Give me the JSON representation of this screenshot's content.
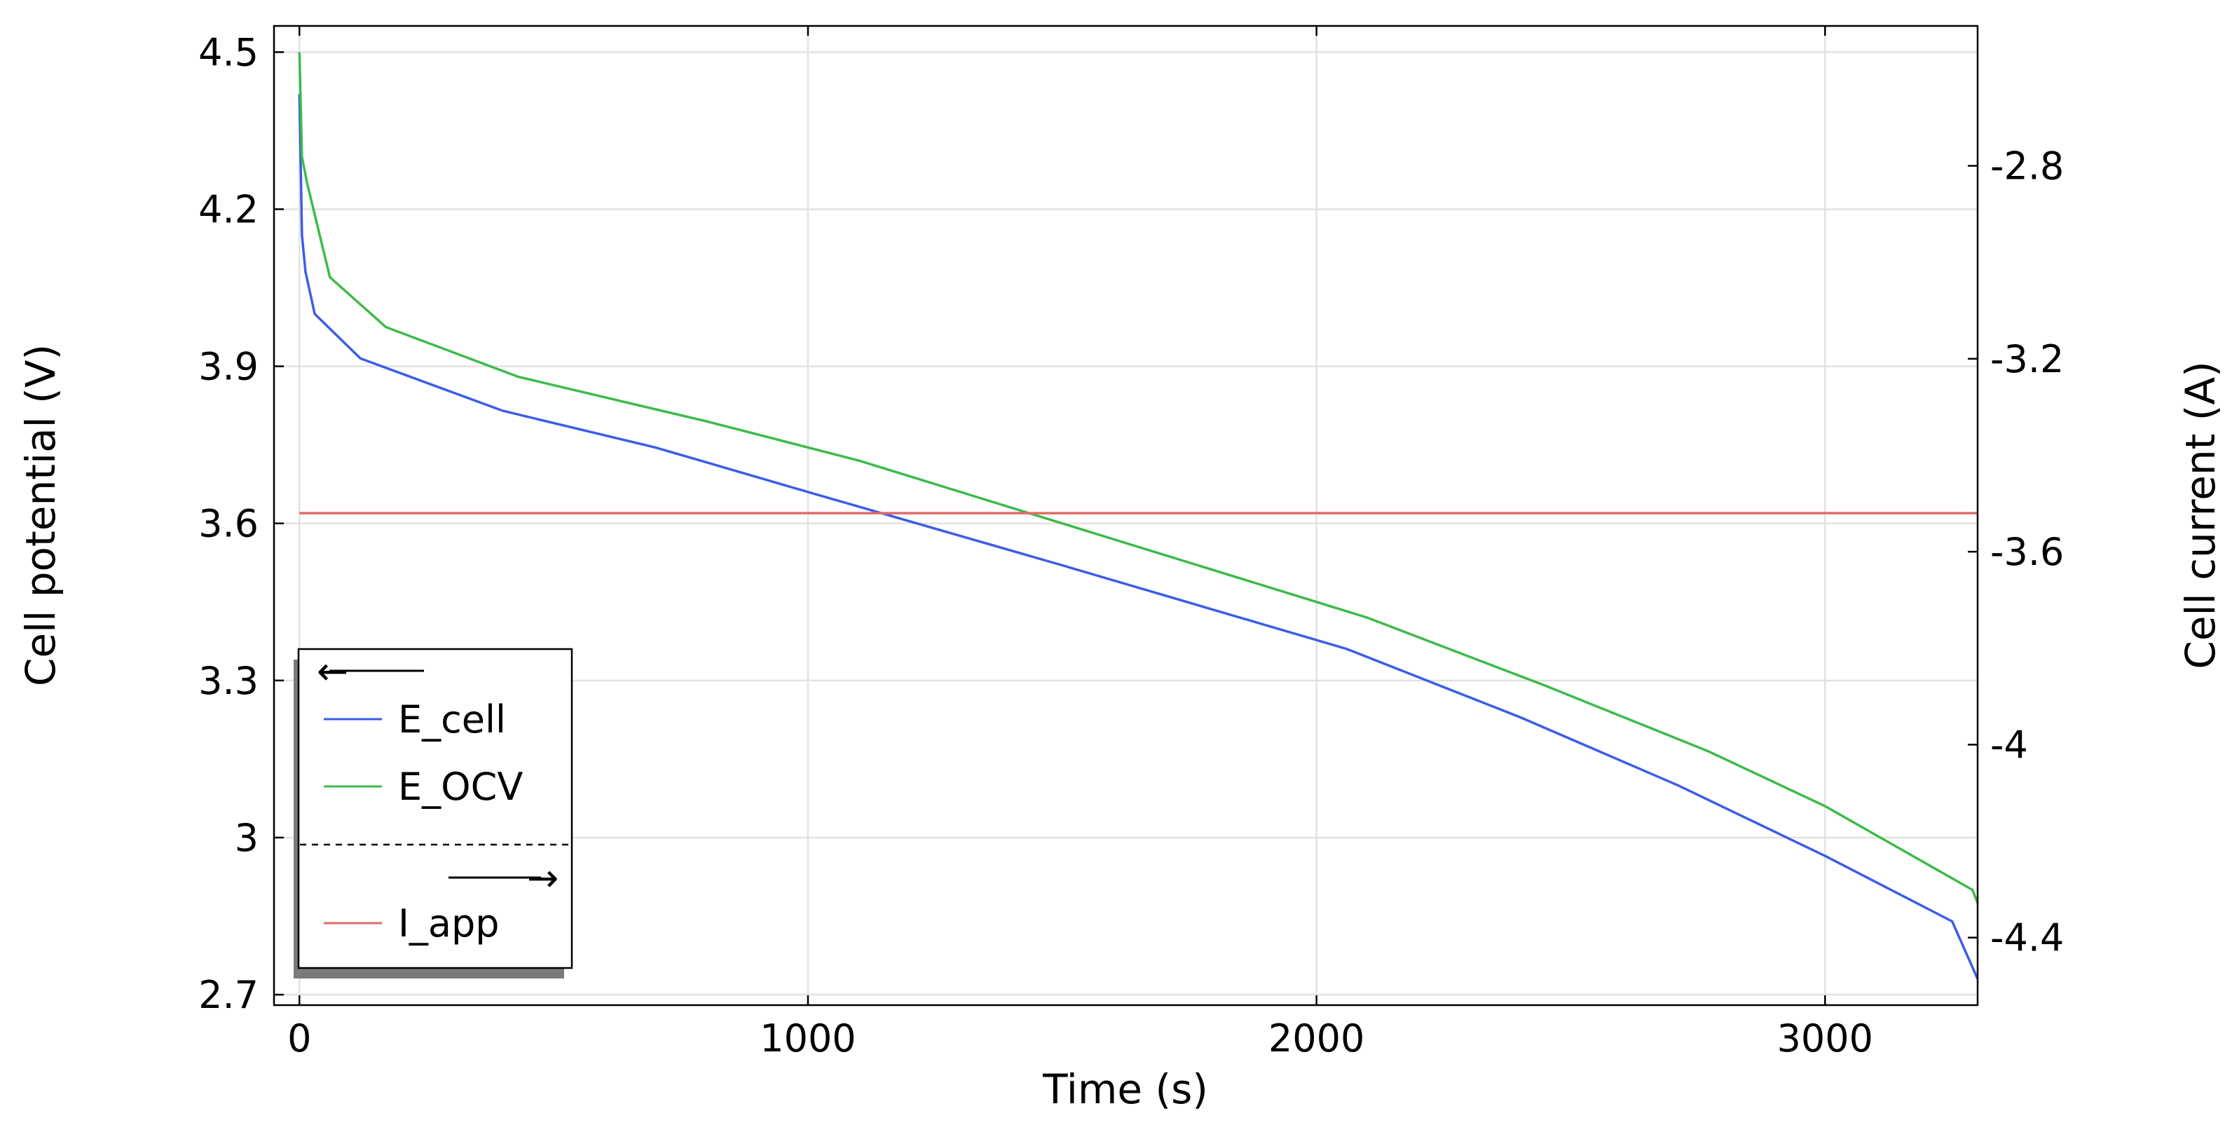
{
  "chart_data": {
    "type": "line",
    "xlabel": "Time (s)",
    "ylabel": "Cell potential (V)",
    "y2label": "Cell current (A)",
    "xlim": [
      -50,
      3300
    ],
    "ylim": [
      2.68,
      4.55
    ],
    "y2lim": [
      -4.54,
      -2.51
    ],
    "xticks": [
      0,
      1000,
      2000,
      3000
    ],
    "yticks": [
      2.7,
      3,
      3.3,
      3.6,
      3.9,
      4.2,
      4.5
    ],
    "y2ticks": [
      -2.8,
      -3.2,
      -3.6,
      -4,
      -4.4
    ],
    "xtick_labels": [
      "0",
      "1000",
      "2000",
      "3000"
    ],
    "ytick_labels": [
      "2.7",
      "3",
      "3.3",
      "3.6",
      "3.9",
      "4.2",
      "4.5"
    ],
    "y2tick_labels": [
      "-2.8",
      "-3.2",
      "-3.6",
      "-4",
      "-4.4"
    ],
    "grid": true,
    "legend_position": "bottom-left",
    "legend_left_axis_marker": "←",
    "legend_right_axis_marker": "→",
    "series": [
      {
        "name": "E_cell",
        "axis": "left",
        "color": "#3b5ee6",
        "x": [
          0,
          5,
          12,
          30,
          120,
          400,
          700,
          1000,
          1500,
          2060,
          2400,
          2710,
          3000,
          3250,
          3300
        ],
        "y": [
          4.42,
          4.15,
          4.08,
          4.0,
          3.915,
          3.815,
          3.745,
          3.66,
          3.52,
          3.36,
          3.23,
          3.1,
          2.965,
          2.84,
          2.73
        ]
      },
      {
        "name": "E_OCV",
        "axis": "left",
        "color": "#3dbb4a",
        "x": [
          0,
          5,
          15,
          60,
          170,
          430,
          800,
          1100,
          1500,
          2100,
          2450,
          2770,
          3000,
          3290,
          3300
        ],
        "y": [
          4.5,
          4.3,
          4.25,
          4.07,
          3.975,
          3.88,
          3.795,
          3.72,
          3.6,
          3.42,
          3.29,
          3.165,
          3.06,
          2.9,
          2.875
        ]
      },
      {
        "name": "I_app",
        "axis": "right",
        "color": "#e06b6b",
        "x": [
          0,
          3300
        ],
        "y": [
          -3.52,
          -3.52
        ]
      }
    ]
  }
}
